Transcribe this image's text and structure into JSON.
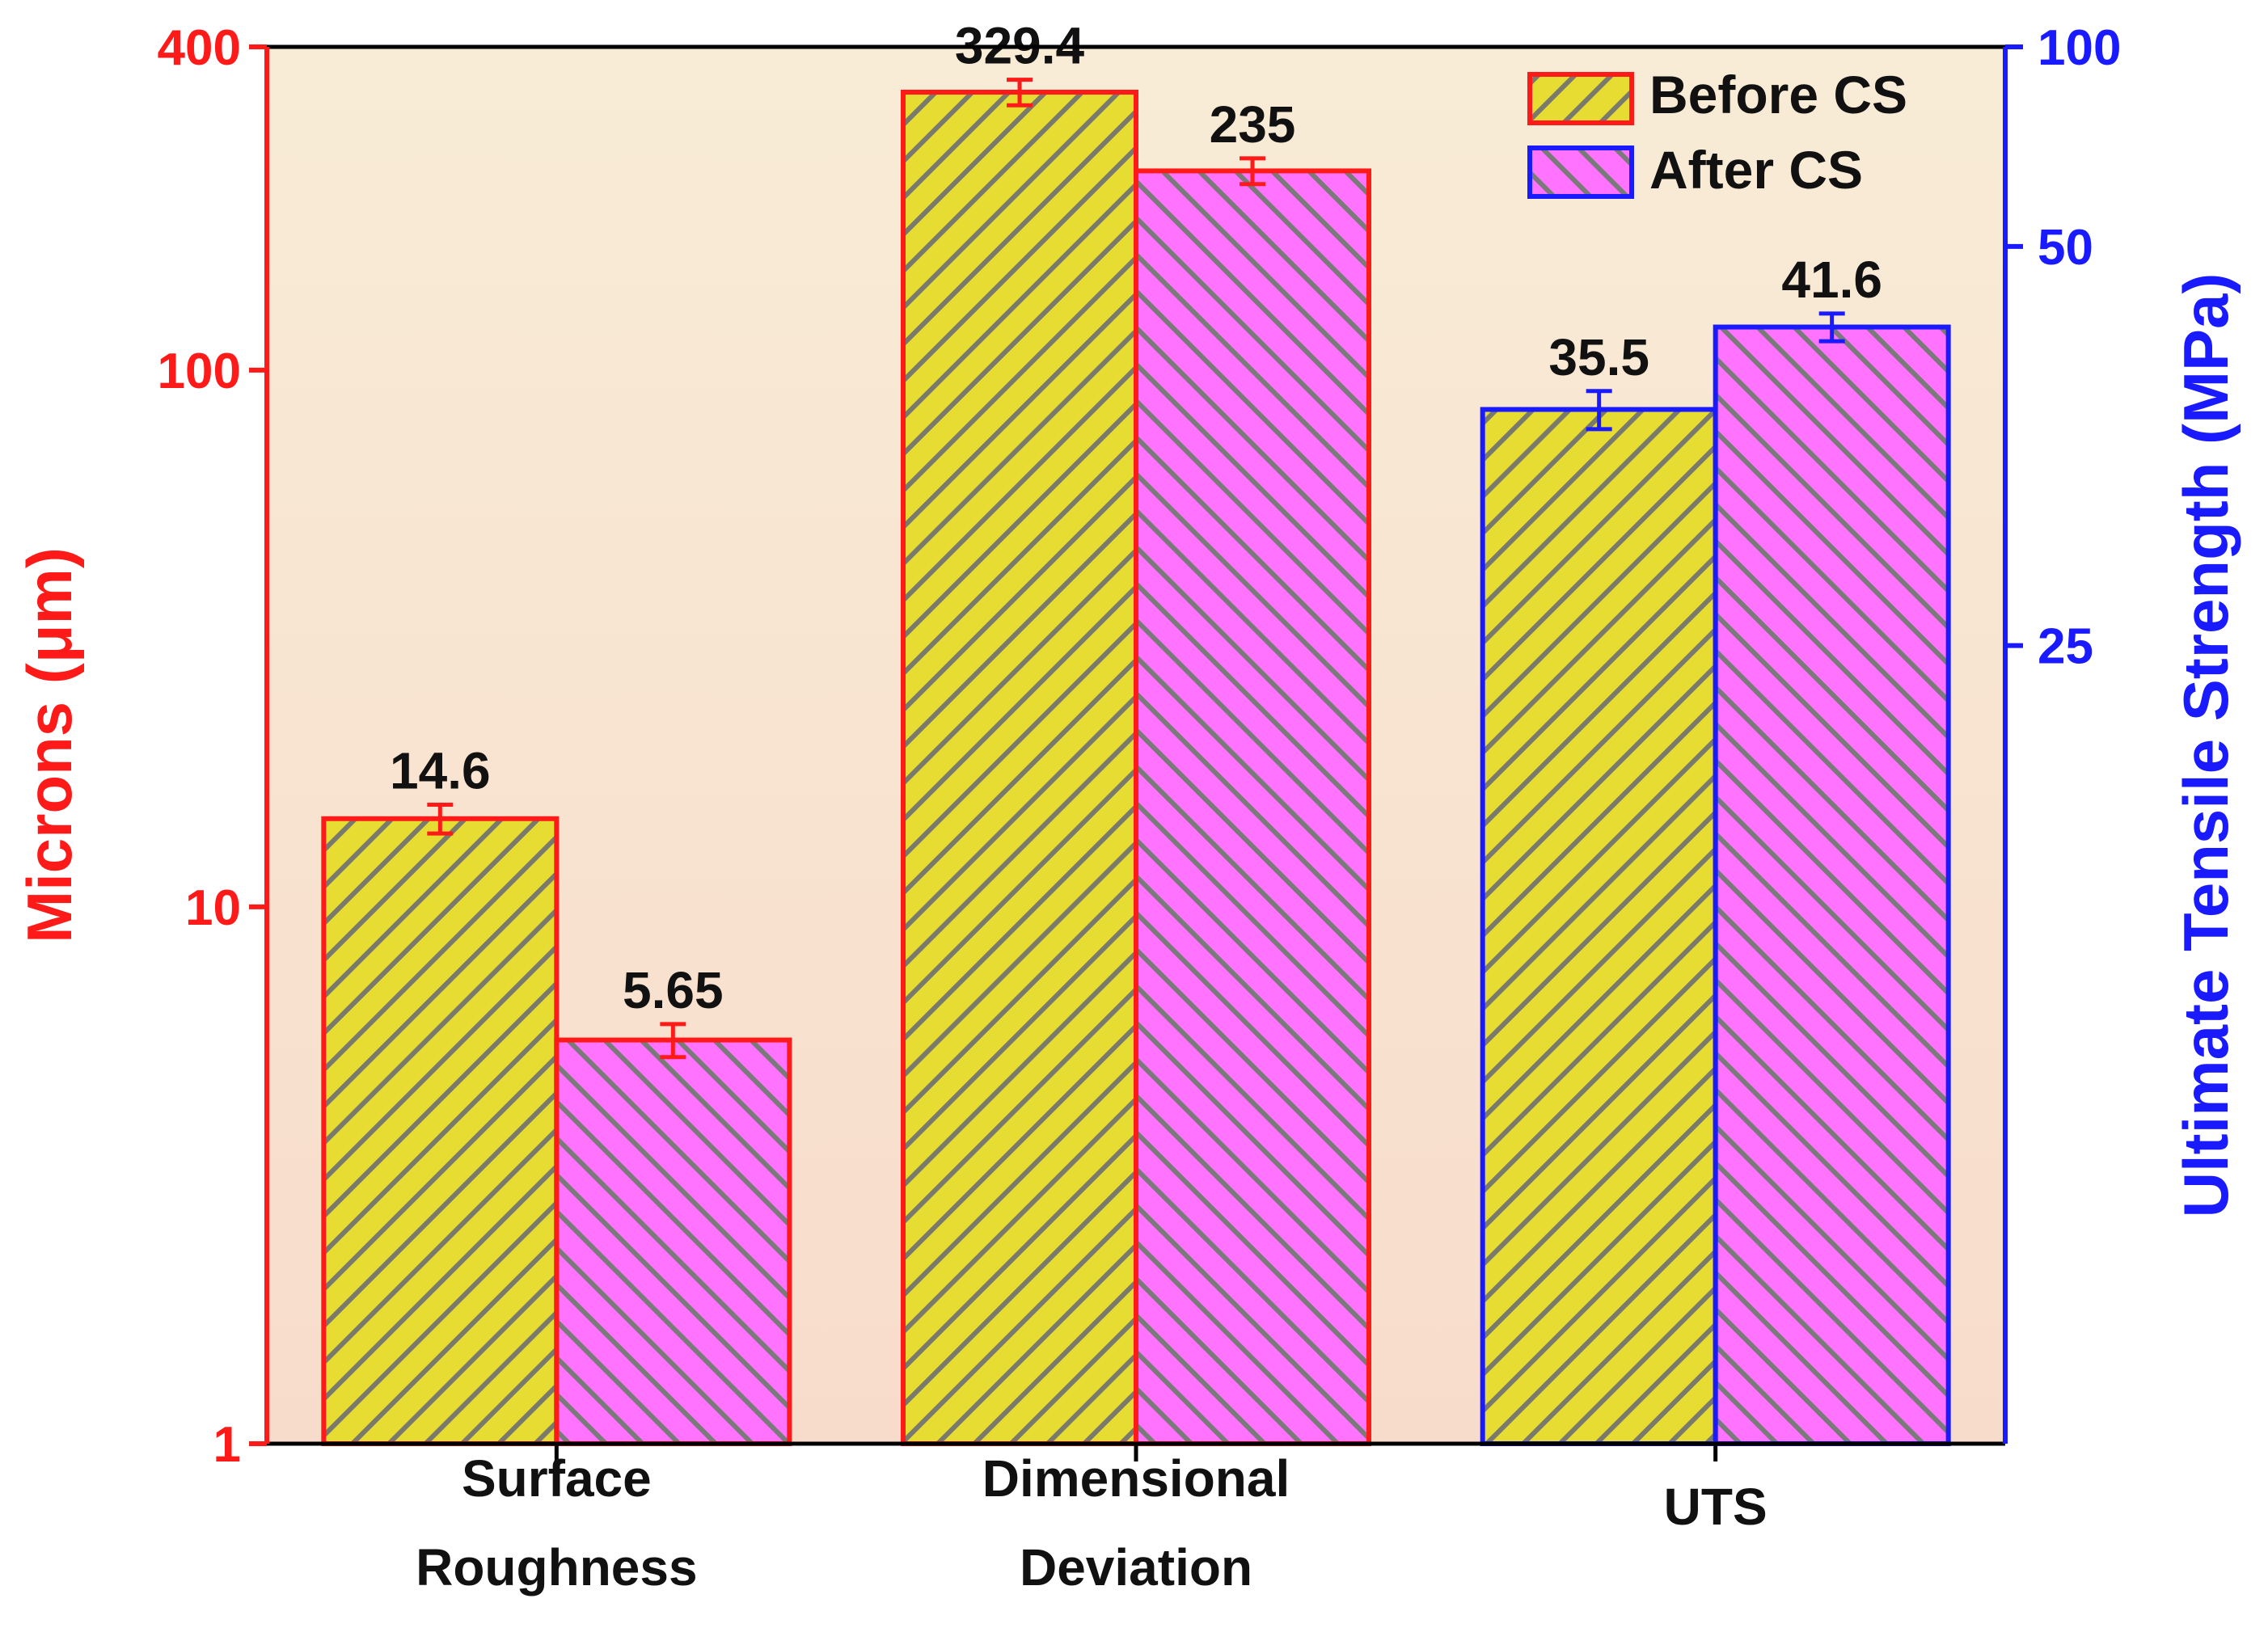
{
  "chart_data": {
    "type": "bar",
    "categories": [
      {
        "lines": [
          "Surface",
          "Roughness"
        ],
        "axis": "left"
      },
      {
        "lines": [
          "Dimensional",
          "Deviation"
        ],
        "axis": "left"
      },
      {
        "lines": [
          "UTS"
        ],
        "axis": "right"
      }
    ],
    "series": [
      {
        "name": "Before CS",
        "values": [
          14.6,
          329.4,
          35.5
        ],
        "labels": [
          "14.6",
          "329.4",
          "35.5"
        ],
        "errors": [
          0.9,
          18,
          1.2
        ],
        "fill": "#e6dc32"
      },
      {
        "name": "After CS",
        "values": [
          5.65,
          235,
          41.6
        ],
        "labels": [
          "5.65",
          "235",
          "41.6"
        ],
        "errors": [
          0.4,
          13,
          1.2
        ],
        "fill": "#ff73ff"
      }
    ],
    "y_left": {
      "label": "Microns (μm)",
      "scale": "log",
      "range": [
        1,
        400
      ],
      "ticks": [
        "1",
        "10",
        "100",
        "400"
      ],
      "color": "#ff1a1a"
    },
    "y_right": {
      "label": "Ultimate Tensile Strength (MPa)",
      "scale": "reciprocal",
      "range": [
        12.5,
        100
      ],
      "ticks": [
        "25",
        "50",
        "100"
      ],
      "color": "#1a1aff"
    },
    "legend_position": "top-right",
    "hatch": "diagonal gray stripes",
    "background_gradient": [
      "#f8ecd6",
      "#f8dccb"
    ],
    "grid": false
  }
}
